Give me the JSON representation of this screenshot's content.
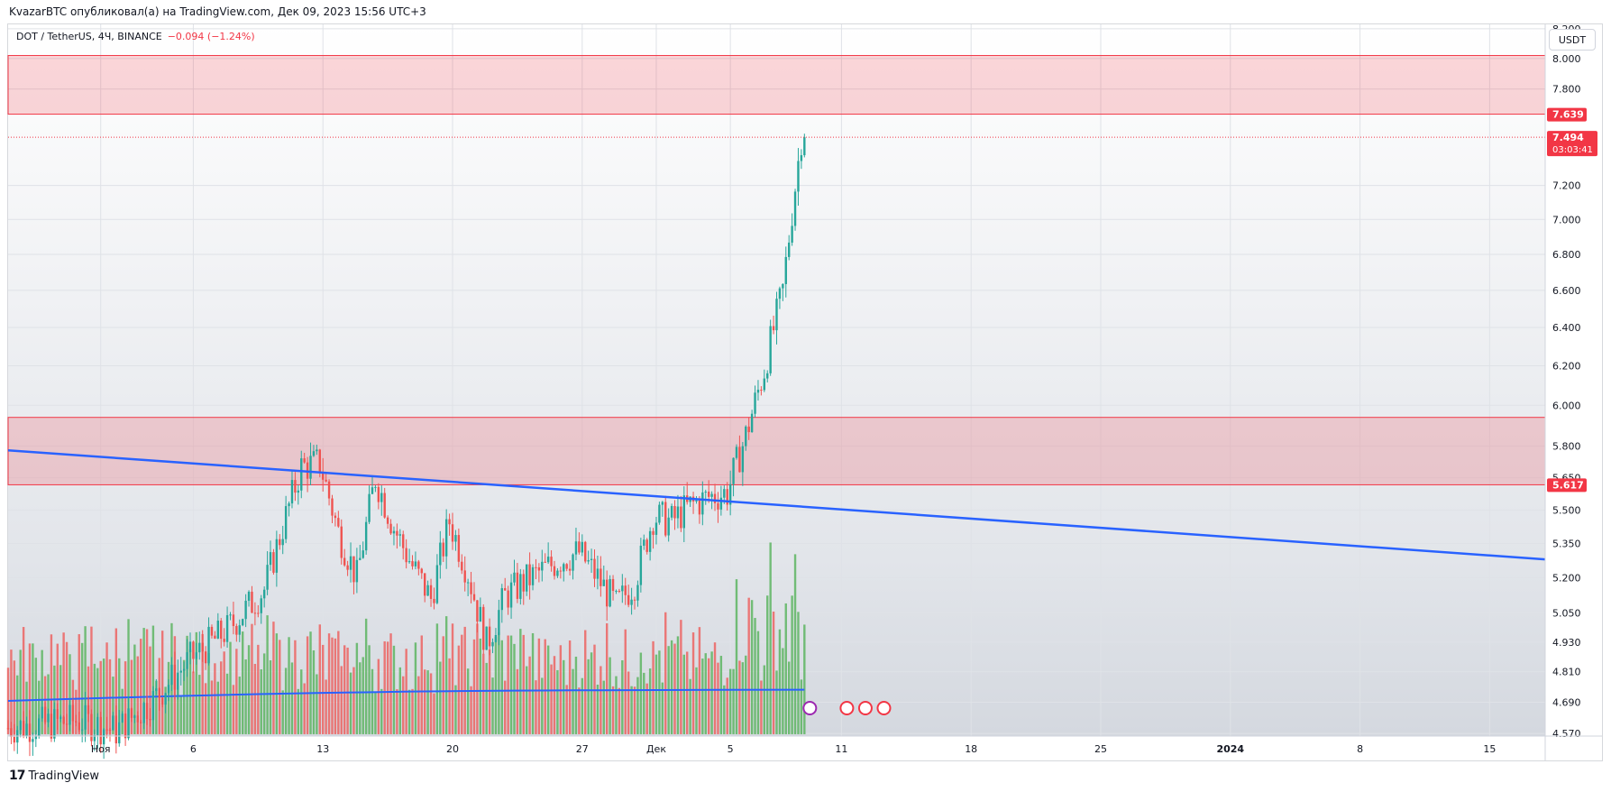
{
  "header": {
    "caption": "KvazarBTC опубликовал(а) на TradingView.com, Дек 09, 2023 15:56 UTC+3"
  },
  "legend": {
    "symbol": "DOT / TetherUS, 4Ч, BINANCE",
    "change": "−0.094 (−1.24%)"
  },
  "currency_button": {
    "label": "USDT"
  },
  "footer": {
    "brand": "TradingView",
    "logo_mark": "17"
  },
  "colors": {
    "up": "#26a69a",
    "down": "#ef5350",
    "volume_up": "#4caf50",
    "volume_down": "#ef5350",
    "trendline": "#2962ff",
    "zone_fill": "#f23645",
    "label_bg": "#f23645"
  },
  "chart_data": {
    "type": "candlestick",
    "symbol": "DOT / TetherUS",
    "timeframe": "4Ч",
    "exchange": "BINANCE",
    "y_axis": {
      "scale": "log",
      "ticks": [
        "8.200",
        "8.000",
        "7.800",
        "7.200",
        "7.000",
        "6.800",
        "6.600",
        "6.400",
        "6.200",
        "6.000",
        "5.800",
        "5.650",
        "5.500",
        "5.350",
        "5.200",
        "5.050",
        "4.930",
        "4.810",
        "4.690",
        "4.570"
      ],
      "ylim": [
        4.56,
        8.23
      ]
    },
    "x_axis": {
      "ticks": [
        "Ноя",
        "6",
        "13",
        "20",
        "27",
        "Дек",
        "5",
        "11",
        "18",
        "25",
        "2024",
        "8",
        "15"
      ],
      "tick_dates": [
        "2023-11-01",
        "2023-11-06",
        "2023-11-13",
        "2023-11-20",
        "2023-11-27",
        "2023-12-01",
        "2023-12-05",
        "2023-12-11",
        "2023-12-18",
        "2023-12-25",
        "2024-01-01",
        "2024-01-08",
        "2024-01-15"
      ],
      "xlim": [
        "2023-10-27",
        "2024-01-18"
      ]
    },
    "price_labels": [
      {
        "value": "7.639",
        "type": "level"
      },
      {
        "value": "7.494",
        "countdown": "03:03:41",
        "type": "last_price"
      },
      {
        "value": "5.617",
        "type": "level"
      }
    ],
    "zones": [
      {
        "from": 7.639,
        "to": 8.02,
        "name": "resistance"
      },
      {
        "from": 5.617,
        "to": 5.94,
        "name": "support"
      }
    ],
    "trendline": {
      "start": [
        "2023-10-27",
        5.78
      ],
      "end": [
        "2024-01-18",
        5.28
      ]
    },
    "ohlc_keypoints": [
      [
        "2023-10-27",
        4.59
      ],
      [
        "2023-10-31",
        4.62
      ],
      [
        "2023-11-02",
        4.58
      ],
      [
        "2023-11-04",
        4.7
      ],
      [
        "2023-11-06",
        4.86
      ],
      [
        "2023-11-08",
        4.98
      ],
      [
        "2023-11-10",
        5.15
      ],
      [
        "2023-11-12",
        5.7
      ],
      [
        "2023-11-13",
        5.72
      ],
      [
        "2023-11-14",
        5.4
      ],
      [
        "2023-11-15",
        5.2
      ],
      [
        "2023-11-16",
        5.65
      ],
      [
        "2023-11-17",
        5.42
      ],
      [
        "2023-11-18",
        5.25
      ],
      [
        "2023-11-19",
        5.11
      ],
      [
        "2023-11-20",
        5.45
      ],
      [
        "2023-11-21",
        5.22
      ],
      [
        "2023-11-22",
        4.92
      ],
      [
        "2023-11-23",
        5.12
      ],
      [
        "2023-11-24",
        5.18
      ],
      [
        "2023-11-26",
        5.28
      ],
      [
        "2023-11-27",
        5.31
      ],
      [
        "2023-11-28",
        5.2
      ],
      [
        "2023-11-29",
        5.08
      ],
      [
        "2023-11-30",
        5.18
      ],
      [
        "2023-12-01",
        5.47
      ],
      [
        "2023-12-02",
        5.45
      ],
      [
        "2023-12-03",
        5.52
      ],
      [
        "2023-12-04",
        5.56
      ],
      [
        "2023-12-05",
        5.58
      ],
      [
        "2023-12-06",
        5.85
      ],
      [
        "2023-12-07",
        6.18
      ],
      [
        "2023-12-08",
        6.6
      ],
      [
        "2023-12-09",
        7.494
      ]
    ],
    "volume_ma_start": 0.45,
    "volume_ma_end": 0.6
  }
}
